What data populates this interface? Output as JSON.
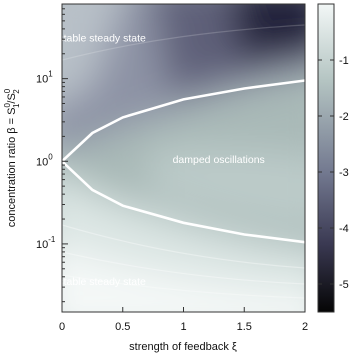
{
  "chart_data": {
    "type": "heatmap",
    "title": "",
    "xlabel": "strength of feedback ξ",
    "ylabel": "concentration ratio β = S",
    "ylabel_sup_1": "0",
    "ylabel_sub_1": "1",
    "ylabel_sep": "/S",
    "ylabel_sup_2": "0",
    "ylabel_sub_2": "2",
    "xlim": [
      0,
      2
    ],
    "ylim": [
      0.015,
      80
    ],
    "yscale": "log",
    "x_ticks": [
      {
        "value": 0,
        "label": "0"
      },
      {
        "value": 0.5,
        "label": "0.5"
      },
      {
        "value": 1,
        "label": "1"
      },
      {
        "value": 1.5,
        "label": "1.5"
      },
      {
        "value": 2,
        "label": "2"
      }
    ],
    "y_ticks": [
      {
        "value": 0.1,
        "base": "10",
        "exp": "-1"
      },
      {
        "value": 1,
        "base": "10",
        "exp": "0"
      },
      {
        "value": 10,
        "base": "10",
        "exp": "1"
      }
    ],
    "colorbar": {
      "range": [
        -5.5,
        0
      ],
      "ticks": [
        {
          "value": -1,
          "label": "-1"
        },
        {
          "value": -2,
          "label": "-2"
        },
        {
          "value": -3,
          "label": "-3"
        },
        {
          "value": -4,
          "label": "-4"
        },
        {
          "value": -5,
          "label": "-5"
        }
      ],
      "colors": {
        "high": "#f2f7f6",
        "mid_high": "#b4c4c2",
        "mid": "#72788f",
        "mid_low": "#3a3952",
        "low": "#050505"
      }
    },
    "boundary": {
      "color": "#ffffff",
      "upper": [
        {
          "x": 0,
          "y": 1
        },
        {
          "x": 0.25,
          "y": 2.2
        },
        {
          "x": 0.5,
          "y": 3.4
        },
        {
          "x": 1,
          "y": 5.6
        },
        {
          "x": 1.5,
          "y": 7.6
        },
        {
          "x": 2,
          "y": 9.5
        }
      ],
      "lower": [
        {
          "x": 0,
          "y": 1
        },
        {
          "x": 0.25,
          "y": 0.45
        },
        {
          "x": 0.5,
          "y": 0.29
        },
        {
          "x": 1,
          "y": 0.18
        },
        {
          "x": 1.5,
          "y": 0.13
        },
        {
          "x": 2,
          "y": 0.105
        }
      ]
    },
    "annotations": [
      {
        "text": "stable steady state",
        "x": 0.33,
        "y": 28
      },
      {
        "text": "damped oscillations",
        "x": 1.29,
        "y": 0.95
      },
      {
        "text": "stable steady state",
        "x": 0.33,
        "y": 0.032
      }
    ]
  }
}
